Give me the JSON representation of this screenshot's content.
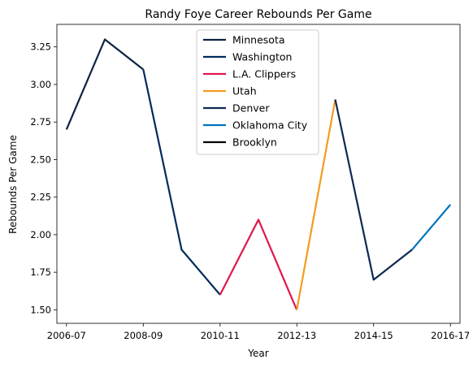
{
  "chart_data": {
    "type": "line",
    "title": "Randy Foye Career Rebounds Per Game",
    "xlabel": "Year",
    "ylabel": "Rebounds Per Game",
    "grid": false,
    "legend_placement": "top-center",
    "x_tick_labels": [
      "2006-07",
      "2008-09",
      "2010-11",
      "2012-13",
      "2014-15",
      "2016-17"
    ],
    "y_tick_labels": [
      "1.50",
      "1.75",
      "2.00",
      "2.25",
      "2.50",
      "2.75",
      "3.00",
      "3.25"
    ],
    "xlim": [
      -0.25,
      10.25
    ],
    "ylim": [
      1.41,
      3.4
    ],
    "series": [
      {
        "name": "Minnesota",
        "color": "#0c2340",
        "x": [
          0,
          1,
          2
        ],
        "y": [
          2.7,
          3.3,
          3.1
        ]
      },
      {
        "name": "Washington",
        "color": "#002b5c",
        "x": [
          2,
          3,
          4
        ],
        "y": [
          3.1,
          1.9,
          1.6
        ]
      },
      {
        "name": "L.A. Clippers",
        "color": "#e0174b",
        "x": [
          4,
          5,
          6
        ],
        "y": [
          1.6,
          2.1,
          1.5
        ]
      },
      {
        "name": "Utah",
        "color": "#f49b1f",
        "x": [
          6,
          7
        ],
        "y": [
          1.5,
          2.9
        ]
      },
      {
        "name": "Denver",
        "color": "#0d2a53",
        "x": [
          7,
          8,
          9
        ],
        "y": [
          2.9,
          1.7,
          1.9
        ]
      },
      {
        "name": "Oklahoma City",
        "color": "#0072bb",
        "x": [
          9,
          10
        ],
        "y": [
          1.9,
          2.2
        ]
      },
      {
        "name": "Brooklyn",
        "color": "#000000",
        "x": [],
        "y": []
      }
    ]
  }
}
